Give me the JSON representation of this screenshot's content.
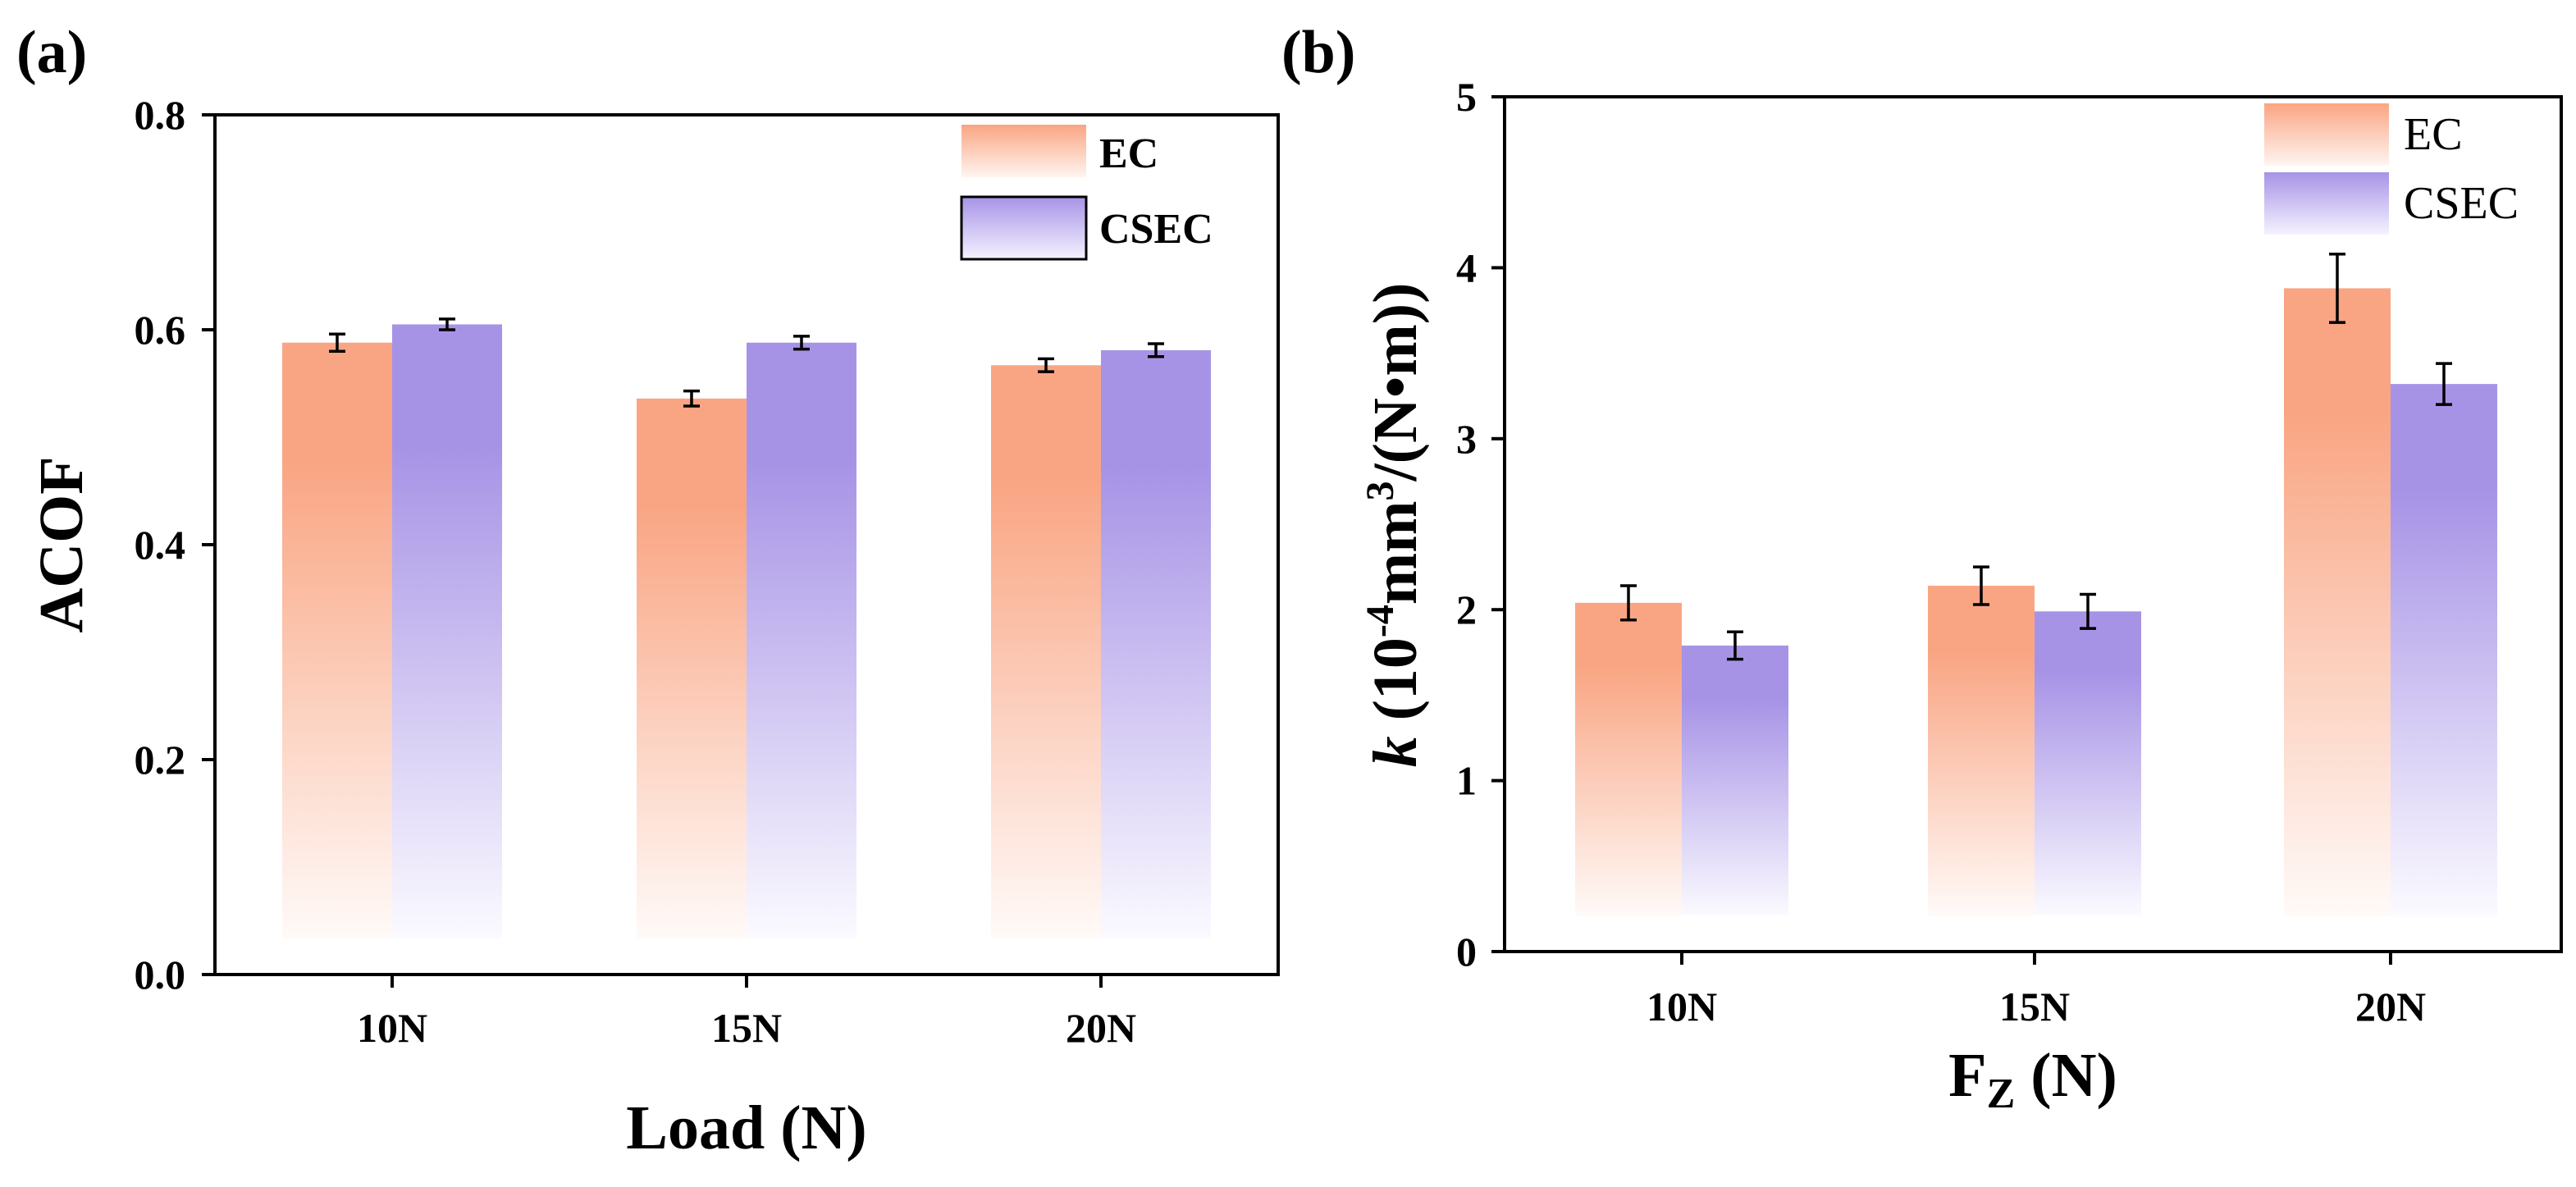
{
  "colors": {
    "ec": "#f9a583",
    "csec": "#a793e6",
    "axis": "#000000"
  },
  "chart_data": [
    {
      "type": "bar",
      "panel_label": "(a)",
      "title": "",
      "xlabel": "Load (N)",
      "ylabel": "ACOF",
      "categories": [
        "10N",
        "15N",
        "20N"
      ],
      "ylim": [
        0,
        0.8
      ],
      "yticks": [
        "0.0",
        "0.2",
        "0.4",
        "0.6",
        "0.8"
      ],
      "ytick_values": [
        0,
        0.2,
        0.4,
        0.6,
        0.8
      ],
      "legend_position": "top-right",
      "series": [
        {
          "name": "EC",
          "values": [
            0.588,
            0.536,
            0.567
          ],
          "errors": [
            0.008,
            0.007,
            0.006
          ]
        },
        {
          "name": "CSEC",
          "values": [
            0.605,
            0.588,
            0.581
          ],
          "errors": [
            0.005,
            0.006,
            0.006
          ]
        }
      ]
    },
    {
      "type": "bar",
      "panel_label": "(b)",
      "title": "",
      "xlabel": "F",
      "xlabel_sub": "Z",
      "xlabel_unit": " (N)",
      "ylabel_k": "k",
      "ylabel_base": " (10",
      "ylabel_exp": "-4",
      "ylabel_mid": "mm",
      "ylabel_exp2": "3",
      "ylabel_tail": "/(N•m))",
      "categories": [
        "10N",
        "15N",
        "20N"
      ],
      "ylim": [
        0,
        5
      ],
      "yticks": [
        "0",
        "1",
        "2",
        "3",
        "4",
        "5"
      ],
      "ytick_values": [
        0,
        1,
        2,
        3,
        4,
        5
      ],
      "legend_position": "top-right",
      "series": [
        {
          "name": "EC",
          "values": [
            2.04,
            2.14,
            3.88
          ],
          "errors": [
            0.1,
            0.11,
            0.2
          ]
        },
        {
          "name": "CSEC",
          "values": [
            1.79,
            1.99,
            3.32
          ],
          "errors": [
            0.08,
            0.1,
            0.12
          ]
        }
      ]
    }
  ]
}
